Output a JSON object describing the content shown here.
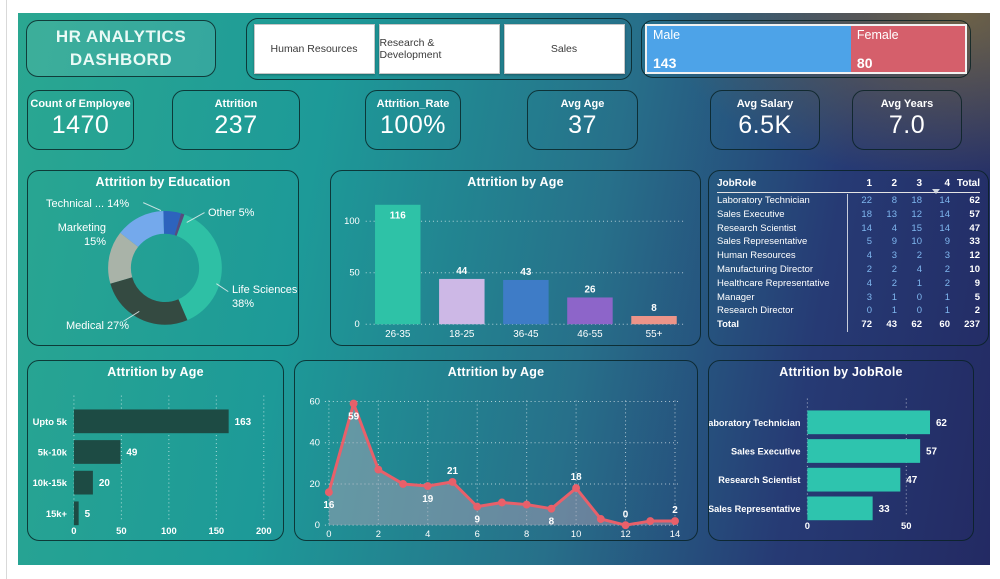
{
  "header": {
    "title_line1": "HR ANALYTICS",
    "title_line2": "DASHBORD",
    "departments": [
      "Human Resources",
      "Research & Development",
      "Sales"
    ],
    "gender": {
      "male_label": "Male",
      "male_value": "143",
      "male_color": "#4da3e8",
      "female_label": "Female",
      "female_value": "80",
      "female_color": "#d55f6b"
    }
  },
  "kpis": [
    {
      "label": "Count of Employee",
      "value": "1470"
    },
    {
      "label": "Attrition",
      "value": "237"
    },
    {
      "label": "Attrition_Rate",
      "value": "100%"
    },
    {
      "label": "Avg Age",
      "value": "37"
    },
    {
      "label": "Avg Salary",
      "value": "6.5K"
    },
    {
      "label": "Avg Years",
      "value": "7.0"
    }
  ],
  "chart_data": [
    {
      "id": "education_donut",
      "type": "pie",
      "title": "Attrition by Education",
      "start_angle_deg": -52,
      "slices": [
        {
          "label": "Technical ... 14%",
          "value": 14,
          "color": "#74a9ec"
        },
        {
          "label": "Other 5%",
          "value": 5,
          "color": "#2d63bd"
        },
        {
          "label": "",
          "value": 1,
          "color": "#574b7e"
        },
        {
          "label": "Life Sciences 38%",
          "value": 38,
          "color": "#2ec0a5"
        },
        {
          "label": "Medical 27%",
          "value": 27,
          "color": "#344a41"
        },
        {
          "label": "Marketing 15%",
          "value": 15,
          "color": "#a9b3a8"
        }
      ]
    },
    {
      "id": "age_bars",
      "type": "bar",
      "title": "Attrition by Age",
      "categories": [
        "26-35",
        "18-25",
        "36-45",
        "46-55",
        "55+"
      ],
      "values": [
        116,
        44,
        43,
        26,
        8
      ],
      "colors": [
        "#2ec2a7",
        "#cdb8e6",
        "#3e7cc7",
        "#8d65c9",
        "#ec9489"
      ],
      "yticks": [
        0,
        50,
        100
      ],
      "ylim": [
        0,
        120
      ],
      "grid": "dotted"
    },
    {
      "id": "salary_bars",
      "type": "bar",
      "orientation": "horizontal",
      "title": "Attrition by Age",
      "categories": [
        "Upto 5k",
        "5k-10k",
        "10k-15k",
        "15k+"
      ],
      "values": [
        163,
        49,
        20,
        5
      ],
      "bar_color": "#1d4b44",
      "xticks": [
        0,
        50,
        100,
        150,
        200
      ],
      "xlim": [
        0,
        200
      ],
      "grid": "dotted"
    },
    {
      "id": "years_line",
      "type": "area",
      "title": "Attrition by Age",
      "x": [
        0,
        1,
        2,
        3,
        4,
        5,
        6,
        7,
        8,
        9,
        10,
        11,
        12,
        13,
        14
      ],
      "values": [
        16,
        59,
        27,
        20,
        19,
        21,
        9,
        11,
        10,
        8,
        18,
        3,
        0,
        2,
        2
      ],
      "labeled_points": [
        {
          "i": 0,
          "text": "16",
          "pos": "below"
        },
        {
          "i": 1,
          "text": "59",
          "pos": "below"
        },
        {
          "i": 4,
          "text": "19",
          "pos": "below"
        },
        {
          "i": 5,
          "text": "21",
          "pos": "above"
        },
        {
          "i": 6,
          "text": "9",
          "pos": "below"
        },
        {
          "i": 9,
          "text": "8",
          "pos": "below"
        },
        {
          "i": 10,
          "text": "18",
          "pos": "above"
        },
        {
          "i": 12,
          "text": "0",
          "pos": "above"
        },
        {
          "i": 14,
          "text": "2",
          "pos": "above"
        }
      ],
      "yticks": [
        0,
        20,
        40,
        60
      ],
      "xticks": [
        0,
        2,
        4,
        6,
        8,
        10,
        12,
        14
      ],
      "ylim": [
        0,
        60
      ],
      "line_color": "#e8606a",
      "fill_color": "rgba(185,165,185,0.45)",
      "grid": "dotted"
    },
    {
      "id": "jobrole_bars",
      "type": "bar",
      "orientation": "horizontal",
      "title": "Attrition by JobRole",
      "categories": [
        "Laboratory Technician",
        "Sales Executive",
        "Research Scientist",
        "Sales Representative"
      ],
      "values": [
        62,
        57,
        47,
        33
      ],
      "bar_color": "#2ec4ae",
      "xticks": [
        0,
        50
      ],
      "xlim": [
        0,
        70
      ],
      "grid": "dotted"
    }
  ],
  "table": {
    "title_col": "JobRole",
    "columns": [
      "1",
      "2",
      "3",
      "4"
    ],
    "total_label": "Total",
    "rows": [
      {
        "role": "Laboratory Technician",
        "values": [
          22,
          8,
          18,
          14
        ],
        "total": 62
      },
      {
        "role": "Sales Executive",
        "values": [
          18,
          13,
          12,
          14
        ],
        "total": 57
      },
      {
        "role": "Research Scientist",
        "values": [
          14,
          4,
          15,
          14
        ],
        "total": 47
      },
      {
        "role": "Sales Representative",
        "values": [
          5,
          9,
          10,
          9
        ],
        "total": 33
      },
      {
        "role": "Human Resources",
        "values": [
          4,
          3,
          2,
          3
        ],
        "total": 12
      },
      {
        "role": "Manufacturing Director",
        "values": [
          2,
          2,
          4,
          2
        ],
        "total": 10
      },
      {
        "role": "Healthcare Representative",
        "values": [
          4,
          2,
          1,
          2
        ],
        "total": 9
      },
      {
        "role": "Manager",
        "values": [
          3,
          1,
          0,
          1
        ],
        "total": 5
      },
      {
        "role": "Research Director",
        "values": [
          0,
          1,
          0,
          1
        ],
        "total": 2
      }
    ],
    "total_row": {
      "label": "Total",
      "values": [
        72,
        43,
        62,
        60
      ],
      "total": 237
    }
  }
}
